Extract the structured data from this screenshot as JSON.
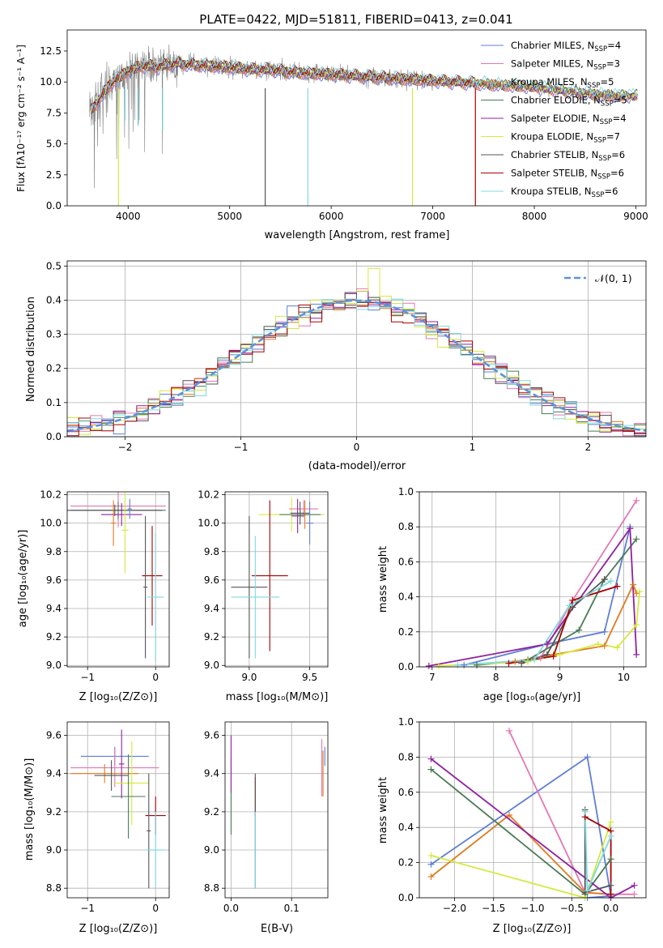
{
  "colors": {
    "Chabrier MILES": "#5f7fd6",
    "Salpeter MILES": "#e377b2",
    "Kroupa MILES": "#e07a1f",
    "Chabrier ELODIE": "#4a7a55",
    "Salpeter ELODIE": "#9020a0",
    "Kroupa ELODIE": "#d4ea3c",
    "Chabrier STELIB": "#555555",
    "Salpeter STELIB": "#a80000",
    "Kroupa STELIB": "#7fd8e0",
    "gaussian": "#5d92dc"
  },
  "chart_data": [
    {
      "id": "spectrum",
      "type": "line",
      "title": "PLATE=0422, MJD=51811, FIBERID=0413, z=0.041",
      "xlabel": "wavelength [Angstrom, rest frame]",
      "ylabel": "Flux [fλ10⁻¹⁷ erg cm⁻² s⁻¹ A⁻¹]",
      "xlim": [
        3400,
        9100
      ],
      "ylim": [
        0,
        14.2
      ],
      "xticks": [
        4000,
        5000,
        6000,
        7000,
        8000,
        9000
      ],
      "yticks": [
        0.0,
        2.5,
        5.0,
        7.5,
        10.0,
        12.5
      ],
      "grid": false,
      "legend_position": "top-right",
      "legend": [
        {
          "label": "Chabrier MILES, N",
          "sub": "SSP",
          "tail": "=4"
        },
        {
          "label": "Salpeter MILES, N",
          "sub": "SSP",
          "tail": "=3"
        },
        {
          "label": "Kroupa MILES, N",
          "sub": "SSP",
          "tail": "=5"
        },
        {
          "label": "Chabrier ELODIE, N",
          "sub": "SSP",
          "tail": "=5"
        },
        {
          "label": "Salpeter ELODIE, N",
          "sub": "SSP",
          "tail": "=4"
        },
        {
          "label": "Kroupa ELODIE, N",
          "sub": "SSP",
          "tail": "=7"
        },
        {
          "label": "Chabrier STELIB, N",
          "sub": "SSP",
          "tail": "=6"
        },
        {
          "label": "Salpeter STELIB, N",
          "sub": "SSP",
          "tail": "=6"
        },
        {
          "label": "Kroupa STELIB, N",
          "sub": "SSP",
          "tail": "=6"
        }
      ],
      "data_range": [
        3620,
        9020
      ],
      "model_continuum": {
        "x": [
          3620,
          3700,
          3800,
          3900,
          4000,
          4100,
          4200,
          4300,
          4400,
          4500,
          4600,
          4800,
          5000,
          5200,
          5400,
          5600,
          5800,
          6000,
          6200,
          6400,
          6600,
          6800,
          7000,
          7200,
          7400,
          7600,
          7800,
          8000,
          8200,
          8400,
          8600,
          8800
        ],
        "y": [
          7.6,
          8.4,
          9.6,
          10.3,
          10.9,
          11.2,
          11.3,
          11.2,
          11.4,
          11.5,
          11.4,
          11.3,
          11.2,
          11.0,
          11.0,
          10.8,
          10.7,
          10.6,
          10.5,
          10.4,
          10.3,
          10.2,
          10.1,
          10.0,
          9.9,
          9.8,
          9.7,
          9.6,
          9.4,
          9.2,
          9.0,
          8.9
        ]
      },
      "dips": [
        {
          "x": 3905,
          "y": 0.0,
          "series": "Kroupa ELODIE"
        },
        {
          "x": 3970,
          "y": 6.9,
          "series": "Kroupa STELIB"
        },
        {
          "x": 4102,
          "y": 6.6,
          "series": "Kroupa STELIB"
        },
        {
          "x": 4340,
          "y": 6.1,
          "series": "Kroupa STELIB"
        },
        {
          "x": 5350,
          "y": 0.0,
          "series": "Chabrier STELIB"
        },
        {
          "x": 5770,
          "y": 0.0,
          "series": "Kroupa STELIB"
        },
        {
          "x": 6800,
          "y": 0.0,
          "series": "Kroupa ELODIE"
        },
        {
          "x": 7420,
          "y": 0.0,
          "series": "Salpeter STELIB"
        }
      ]
    },
    {
      "id": "residuals",
      "type": "step",
      "xlabel": "(data-model)/error",
      "ylabel": "Normed distribution",
      "xlim": [
        -2.5,
        2.5
      ],
      "ylim": [
        0,
        0.515
      ],
      "xticks": [
        -2,
        -1,
        0,
        1,
        2
      ],
      "yticks": [
        0.0,
        0.1,
        0.2,
        0.3,
        0.4,
        0.5
      ],
      "grid": true,
      "legend_position": "top-right",
      "legend": [
        {
          "label": "𝒩(0, 1)",
          "series": "gaussian"
        }
      ],
      "bin_width": 0.1,
      "bins_start": -2.5,
      "notable_peak": {
        "x": 0.1,
        "y": 0.493
      }
    },
    {
      "id": "age-vs-Z",
      "type": "errorbar",
      "xlabel": "Z [log₁₀(Z/Z⊙)]",
      "ylabel": "age  [log₁₀(age/yr)]",
      "xlim": [
        -1.3,
        0.2
      ],
      "ylim": [
        8.99,
        10.22
      ],
      "xticks": [
        -1,
        0
      ],
      "yticks": [
        9.0,
        9.2,
        9.4,
        9.6,
        9.8,
        10.0,
        10.2
      ],
      "points": [
        {
          "series": "Salpeter MILES",
          "x": -0.55,
          "y": 10.12,
          "xerr": 0.7,
          "yerr": 0.15
        },
        {
          "series": "Chabrier ELODIE",
          "x": -0.55,
          "y": 10.09,
          "xerr": 0.7,
          "yerr": 0.06
        },
        {
          "series": "Chabrier STELIB",
          "x": -0.6,
          "y": 10.09,
          "xerr": 0.7,
          "yerr": 0.04
        },
        {
          "series": "Salpeter ELODIE",
          "x": -0.5,
          "y": 10.06,
          "xerr": 0.3,
          "yerr": 0.08
        },
        {
          "series": "Kroupa MILES",
          "x": -0.62,
          "y": 10.0,
          "xerr": 0.04,
          "yerr": 0.16
        },
        {
          "series": "Kroupa ELODIE",
          "x": -0.45,
          "y": 9.95,
          "xerr": 0.05,
          "yerr": 0.3
        },
        {
          "series": "Chabrier MILES",
          "x": -0.38,
          "y": 10.1,
          "xerr": 0.03,
          "yerr": 0.07
        },
        {
          "series": "Salpeter STELIB",
          "x": -0.05,
          "y": 9.63,
          "xerr": 0.15,
          "yerr": 0.35
        },
        {
          "series": "Chabrier STELIB",
          "x": -0.15,
          "y": 9.55,
          "xerr": 0.03,
          "yerr": 0.5
        },
        {
          "series": "Kroupa STELIB",
          "x": 0.0,
          "y": 9.48,
          "xerr": 0.12,
          "yerr": 0.45
        }
      ]
    },
    {
      "id": "age-vs-mass",
      "type": "errorbar",
      "xlabel": "mass [log₁₀(M/M⊙)]",
      "ylabel": "",
      "xlim": [
        8.8,
        9.65
      ],
      "ylim": [
        8.99,
        10.22
      ],
      "xticks": [
        9.0,
        9.5
      ],
      "yticks": [
        9.0,
        9.2,
        9.4,
        9.6,
        9.8,
        10.0,
        10.2
      ],
      "points": [
        {
          "series": "Kroupa ELODIE",
          "x": 9.35,
          "y": 10.06,
          "xerr": 0.27,
          "yerr": 0.12
        },
        {
          "series": "Salpeter MILES",
          "x": 9.45,
          "y": 10.1,
          "xerr": 0.12,
          "yerr": 0.06
        },
        {
          "series": "Chabrier STELIB",
          "x": 9.42,
          "y": 10.07,
          "xerr": 0.08,
          "yerr": 0.08
        },
        {
          "series": "Salpeter ELODIE",
          "x": 9.4,
          "y": 10.05,
          "xerr": 0.05,
          "yerr": 0.12
        },
        {
          "series": "Kroupa MILES",
          "x": 9.46,
          "y": 10.06,
          "xerr": 0.05,
          "yerr": 0.1
        },
        {
          "series": "Chabrier ELODIE",
          "x": 9.42,
          "y": 10.06,
          "xerr": 0.17,
          "yerr": 0.04
        },
        {
          "series": "Chabrier MILES",
          "x": 9.5,
          "y": 10.0,
          "xerr": 0.03,
          "yerr": 0.15
        },
        {
          "series": "Salpeter STELIB",
          "x": 9.17,
          "y": 9.63,
          "xerr": 0.15,
          "yerr": 0.53
        },
        {
          "series": "Chabrier STELIB",
          "x": 9.0,
          "y": 9.55,
          "xerr": 0.15,
          "yerr": 0.5
        },
        {
          "series": "Kroupa STELIB",
          "x": 9.05,
          "y": 9.48,
          "xerr": 0.2,
          "yerr": 0.43
        }
      ]
    },
    {
      "id": "massweight-vs-age",
      "type": "line",
      "xlabel": "age  [log₁₀(age/yr)]",
      "ylabel": "mass weight",
      "xlim": [
        6.8,
        10.35
      ],
      "ylim": [
        0,
        1.0
      ],
      "xticks": [
        7,
        8,
        9,
        10
      ],
      "yticks": [
        0.0,
        0.2,
        0.4,
        0.6,
        0.8,
        1.0
      ],
      "grid": true,
      "series": [
        {
          "name": "Chabrier MILES",
          "x": [
            7.5,
            8.8,
            9.7,
            10.1
          ],
          "y": [
            0.01,
            0.13,
            0.2,
            0.8
          ]
        },
        {
          "name": "Salpeter MILES",
          "x": [
            8.7,
            9.2,
            10.2
          ],
          "y": [
            0.05,
            0.38,
            0.95
          ]
        },
        {
          "name": "Kroupa MILES",
          "x": [
            8.3,
            8.9,
            9.7,
            10.15,
            10.2
          ],
          "y": [
            0.03,
            0.07,
            0.12,
            0.47,
            0.42
          ]
        },
        {
          "name": "Chabrier ELODIE",
          "x": [
            7.7,
            8.5,
            9.3,
            9.7,
            10.2
          ],
          "y": [
            0.01,
            0.04,
            0.21,
            0.5,
            0.73
          ]
        },
        {
          "name": "Salpeter ELODIE",
          "x": [
            6.95,
            8.8,
            10.1,
            10.2
          ],
          "y": [
            0.005,
            0.13,
            0.79,
            0.07
          ]
        },
        {
          "name": "Kroupa ELODIE",
          "x": [
            7.1,
            8.5,
            9.0,
            9.6,
            9.9,
            10.2,
            10.25
          ],
          "y": [
            0.005,
            0.03,
            0.07,
            0.13,
            0.11,
            0.24,
            0.43
          ]
        },
        {
          "name": "Chabrier STELIB",
          "x": [
            8.4,
            8.8,
            9.2,
            9.7
          ],
          "y": [
            0.02,
            0.07,
            0.34,
            0.5
          ]
        },
        {
          "name": "Salpeter STELIB",
          "x": [
            8.2,
            8.9,
            9.2,
            9.9
          ],
          "y": [
            0.02,
            0.06,
            0.38,
            0.46
          ]
        },
        {
          "name": "Kroupa STELIB",
          "x": [
            7.4,
            8.6,
            9.15,
            9.8
          ],
          "y": [
            0.01,
            0.04,
            0.35,
            0.49
          ]
        }
      ]
    },
    {
      "id": "mass-vs-Z",
      "type": "errorbar",
      "xlabel": "Z [log₁₀(Z/Z⊙)]",
      "ylabel": "mass [log₁₀(M/M⊙)]",
      "xlim": [
        -1.3,
        0.2
      ],
      "ylim": [
        8.75,
        9.67
      ],
      "xticks": [
        -1,
        0
      ],
      "yticks": [
        8.8,
        9.0,
        9.2,
        9.4,
        9.6
      ],
      "points": [
        {
          "series": "Chabrier MILES",
          "x": -0.6,
          "y": 9.49,
          "xerr": 0.5,
          "yerr": 0.05
        },
        {
          "series": "Salpeter MILES",
          "x": -0.6,
          "y": 9.43,
          "xerr": 0.65,
          "yerr": 0.1
        },
        {
          "series": "Kroupa MILES",
          "x": -0.75,
          "y": 9.4,
          "xerr": 0.5,
          "yerr": 0.05
        },
        {
          "series": "Salpeter ELODIE",
          "x": -0.5,
          "y": 9.45,
          "xerr": 0.04,
          "yerr": 0.18
        },
        {
          "series": "Chabrier STELIB",
          "x": -0.65,
          "y": 9.39,
          "xerr": 0.25,
          "yerr": 0.08
        },
        {
          "series": "Kroupa ELODIE",
          "x": -0.35,
          "y": 9.35,
          "xerr": 0.25,
          "yerr": 0.22
        },
        {
          "series": "Chabrier ELODIE",
          "x": -0.4,
          "y": 9.28,
          "xerr": 0.25,
          "yerr": 0.22
        },
        {
          "series": "Salpeter STELIB",
          "x": 0.0,
          "y": 9.18,
          "xerr": 0.15,
          "yerr": 0.1
        },
        {
          "series": "Chabrier STELIB",
          "x": -0.1,
          "y": 9.1,
          "xerr": 0.03,
          "yerr": 0.3
        },
        {
          "series": "Kroupa STELIB",
          "x": 0.0,
          "y": 9.0,
          "xerr": 0.15,
          "yerr": 0.2
        }
      ]
    },
    {
      "id": "mass-vs-ebv",
      "type": "errorbar",
      "xlabel": "E(B-V)",
      "ylabel": "",
      "xlim": [
        -0.01,
        0.16
      ],
      "ylim": [
        8.75,
        9.67
      ],
      "xticks": [
        0.0,
        0.1
      ],
      "yticks": [
        8.8,
        9.0,
        9.2,
        9.4,
        9.6
      ],
      "points": [
        {
          "series": "Kroupa ELODIE",
          "x": 0.0,
          "y": 9.35,
          "xerr": 0.0,
          "yerr": 0.25
        },
        {
          "series": "Chabrier ELODIE",
          "x": 0.0,
          "y": 9.28,
          "xerr": 0.0,
          "yerr": 0.2
        },
        {
          "series": "Salpeter ELODIE",
          "x": 0.0,
          "y": 9.45,
          "xerr": 0.0,
          "yerr": 0.15
        },
        {
          "series": "Salpeter STELIB",
          "x": 0.04,
          "y": 9.28,
          "xerr": 0.0,
          "yerr": 0.1
        },
        {
          "series": "Chabrier STELIB",
          "x": 0.04,
          "y": 9.1,
          "xerr": 0.0,
          "yerr": 0.3
        },
        {
          "series": "Kroupa STELIB",
          "x": 0.04,
          "y": 9.0,
          "xerr": 0.0,
          "yerr": 0.2
        },
        {
          "series": "Salpeter MILES",
          "x": 0.15,
          "y": 9.43,
          "xerr": 0.0,
          "yerr": 0.15
        },
        {
          "series": "Kroupa MILES",
          "x": 0.152,
          "y": 9.4,
          "xerr": 0.0,
          "yerr": 0.12
        },
        {
          "series": "Chabrier MILES",
          "x": 0.155,
          "y": 9.49,
          "xerr": 0.0,
          "yerr": 0.05
        }
      ]
    },
    {
      "id": "massweight-vs-Z",
      "type": "line",
      "xlabel": "Z [log₁₀(Z/Z⊙)]",
      "ylabel": "mass weight",
      "xlim": [
        -2.45,
        0.45
      ],
      "ylim": [
        0,
        1.0
      ],
      "xticks": [
        -2.0,
        -1.5,
        -1.0,
        -0.5,
        0.0
      ],
      "yticks": [
        0.0,
        0.2,
        0.4,
        0.6,
        0.8,
        1.0
      ],
      "grid": true,
      "series": [
        {
          "name": "Chabrier MILES",
          "x": [
            -2.3,
            -0.3,
            0.0,
            -0.3
          ],
          "y": [
            0.19,
            0.8,
            0.01,
            0.0
          ]
        },
        {
          "name": "Salpeter MILES",
          "x": [
            -1.3,
            -0.33,
            0.0,
            0.3
          ],
          "y": [
            0.95,
            0.03,
            0.02,
            0.02
          ]
        },
        {
          "name": "Kroupa MILES",
          "x": [
            -2.3,
            -1.3,
            -0.33,
            0.0
          ],
          "y": [
            0.12,
            0.47,
            0.03,
            0.02
          ]
        },
        {
          "name": "Chabrier ELODIE",
          "x": [
            -2.3,
            -0.33,
            0.0
          ],
          "y": [
            0.73,
            0.02,
            0.22
          ]
        },
        {
          "name": "Salpeter ELODIE",
          "x": [
            -2.3,
            0.0,
            0.3
          ],
          "y": [
            0.79,
            0.0,
            0.07
          ]
        },
        {
          "name": "Kroupa ELODIE",
          "x": [
            -2.3,
            -0.33,
            0.0
          ],
          "y": [
            0.24,
            0.0,
            0.43
          ]
        },
        {
          "name": "Chabrier STELIB",
          "x": [
            -0.33,
            -0.33,
            0.0
          ],
          "y": [
            0.5,
            0.03,
            0.07
          ]
        },
        {
          "name": "Salpeter STELIB",
          "x": [
            -0.33,
            0.0,
            0.0
          ],
          "y": [
            0.46,
            0.38,
            0.02
          ]
        },
        {
          "name": "Kroupa STELIB",
          "x": [
            -0.33,
            -0.3,
            0.0
          ],
          "y": [
            0.49,
            0.04,
            0.35
          ]
        }
      ]
    }
  ]
}
